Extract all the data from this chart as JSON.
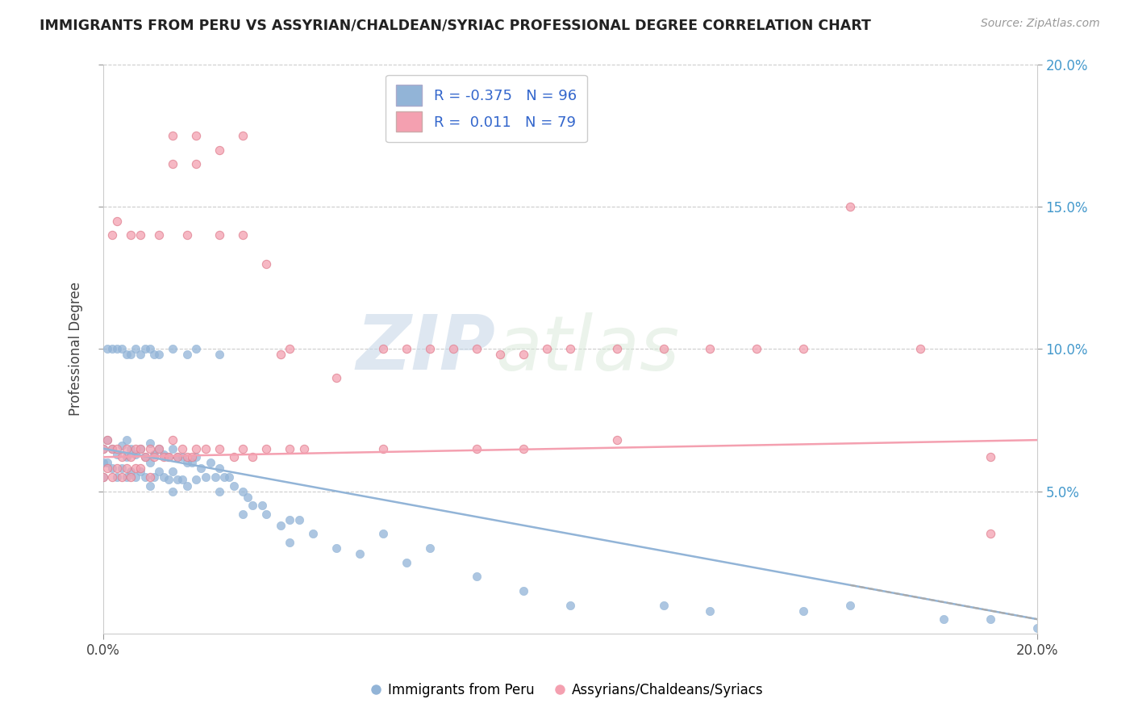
{
  "title": "IMMIGRANTS FROM PERU VS ASSYRIAN/CHALDEAN/SYRIAC PROFESSIONAL DEGREE CORRELATION CHART",
  "source": "Source: ZipAtlas.com",
  "ylabel": "Professional Degree",
  "blue_color": "#92b4d7",
  "pink_color": "#f4a0b0",
  "blue_R": -0.375,
  "blue_N": 96,
  "pink_R": 0.011,
  "pink_N": 79,
  "blue_label": "Immigrants from Peru",
  "pink_label": "Assyrians/Chaldeans/Syriacs",
  "watermark_zip": "ZIP",
  "watermark_atlas": "atlas",
  "xlim": [
    0.0,
    0.2
  ],
  "ylim": [
    0.0,
    0.2
  ],
  "yticks": [
    0.05,
    0.1,
    0.15,
    0.2
  ],
  "ytick_labels": [
    "5.0%",
    "10.0%",
    "15.0%",
    "20.0%"
  ],
  "xticks": [
    0.0,
    0.2
  ],
  "xtick_labels": [
    "0.0%",
    "20.0%"
  ],
  "blue_trend_y0": 0.065,
  "blue_trend_y1": 0.005,
  "pink_trend_y0": 0.062,
  "pink_trend_y1": 0.068,
  "blue_x": [
    0.0,
    0.0,
    0.0,
    0.001,
    0.001,
    0.002,
    0.002,
    0.003,
    0.003,
    0.004,
    0.004,
    0.005,
    0.005,
    0.005,
    0.006,
    0.006,
    0.007,
    0.007,
    0.008,
    0.008,
    0.009,
    0.009,
    0.01,
    0.01,
    0.01,
    0.011,
    0.011,
    0.012,
    0.012,
    0.013,
    0.013,
    0.014,
    0.014,
    0.015,
    0.015,
    0.015,
    0.016,
    0.016,
    0.017,
    0.017,
    0.018,
    0.018,
    0.019,
    0.02,
    0.02,
    0.021,
    0.022,
    0.023,
    0.024,
    0.025,
    0.025,
    0.026,
    0.027,
    0.028,
    0.03,
    0.03,
    0.031,
    0.032,
    0.034,
    0.035,
    0.038,
    0.04,
    0.04,
    0.042,
    0.045,
    0.05,
    0.055,
    0.06,
    0.065,
    0.07,
    0.08,
    0.09,
    0.1,
    0.12,
    0.13,
    0.15,
    0.16,
    0.18,
    0.19,
    0.2,
    0.001,
    0.002,
    0.003,
    0.004,
    0.005,
    0.006,
    0.007,
    0.008,
    0.009,
    0.01,
    0.011,
    0.012,
    0.015,
    0.018,
    0.02,
    0.025
  ],
  "blue_y": [
    0.065,
    0.06,
    0.055,
    0.068,
    0.06,
    0.065,
    0.058,
    0.063,
    0.055,
    0.066,
    0.058,
    0.068,
    0.062,
    0.055,
    0.065,
    0.057,
    0.063,
    0.055,
    0.065,
    0.057,
    0.062,
    0.055,
    0.067,
    0.06,
    0.052,
    0.063,
    0.055,
    0.065,
    0.057,
    0.063,
    0.055,
    0.062,
    0.054,
    0.065,
    0.057,
    0.05,
    0.062,
    0.054,
    0.062,
    0.054,
    0.06,
    0.052,
    0.06,
    0.062,
    0.054,
    0.058,
    0.055,
    0.06,
    0.055,
    0.058,
    0.05,
    0.055,
    0.055,
    0.052,
    0.05,
    0.042,
    0.048,
    0.045,
    0.045,
    0.042,
    0.038,
    0.04,
    0.032,
    0.04,
    0.035,
    0.03,
    0.028,
    0.035,
    0.025,
    0.03,
    0.02,
    0.015,
    0.01,
    0.01,
    0.008,
    0.008,
    0.01,
    0.005,
    0.005,
    0.002,
    0.1,
    0.1,
    0.1,
    0.1,
    0.098,
    0.098,
    0.1,
    0.098,
    0.1,
    0.1,
    0.098,
    0.098,
    0.1,
    0.098,
    0.1,
    0.098
  ],
  "pink_x": [
    0.0,
    0.0,
    0.001,
    0.001,
    0.002,
    0.002,
    0.003,
    0.003,
    0.004,
    0.004,
    0.005,
    0.005,
    0.006,
    0.006,
    0.007,
    0.007,
    0.008,
    0.008,
    0.009,
    0.01,
    0.01,
    0.011,
    0.012,
    0.013,
    0.014,
    0.015,
    0.016,
    0.017,
    0.018,
    0.019,
    0.02,
    0.022,
    0.025,
    0.028,
    0.03,
    0.032,
    0.035,
    0.038,
    0.04,
    0.043,
    0.05,
    0.06,
    0.08,
    0.09,
    0.11,
    0.16,
    0.19,
    0.015,
    0.015,
    0.02,
    0.02,
    0.025,
    0.03,
    0.035,
    0.04,
    0.06,
    0.065,
    0.07,
    0.075,
    0.08,
    0.085,
    0.09,
    0.095,
    0.1,
    0.11,
    0.12,
    0.13,
    0.14,
    0.15,
    0.175,
    0.19,
    0.002,
    0.003,
    0.006,
    0.008,
    0.012,
    0.018,
    0.025,
    0.03
  ],
  "pink_y": [
    0.065,
    0.055,
    0.068,
    0.058,
    0.065,
    0.055,
    0.065,
    0.058,
    0.062,
    0.055,
    0.065,
    0.058,
    0.062,
    0.055,
    0.065,
    0.058,
    0.065,
    0.058,
    0.062,
    0.065,
    0.055,
    0.062,
    0.065,
    0.062,
    0.062,
    0.068,
    0.062,
    0.065,
    0.062,
    0.062,
    0.065,
    0.065,
    0.065,
    0.062,
    0.065,
    0.062,
    0.065,
    0.098,
    0.065,
    0.065,
    0.09,
    0.065,
    0.065,
    0.065,
    0.068,
    0.15,
    0.035,
    0.175,
    0.165,
    0.175,
    0.165,
    0.17,
    0.175,
    0.13,
    0.1,
    0.1,
    0.1,
    0.1,
    0.1,
    0.1,
    0.098,
    0.098,
    0.1,
    0.1,
    0.1,
    0.1,
    0.1,
    0.1,
    0.1,
    0.1,
    0.062,
    0.14,
    0.145,
    0.14,
    0.14,
    0.14,
    0.14,
    0.14,
    0.14
  ]
}
